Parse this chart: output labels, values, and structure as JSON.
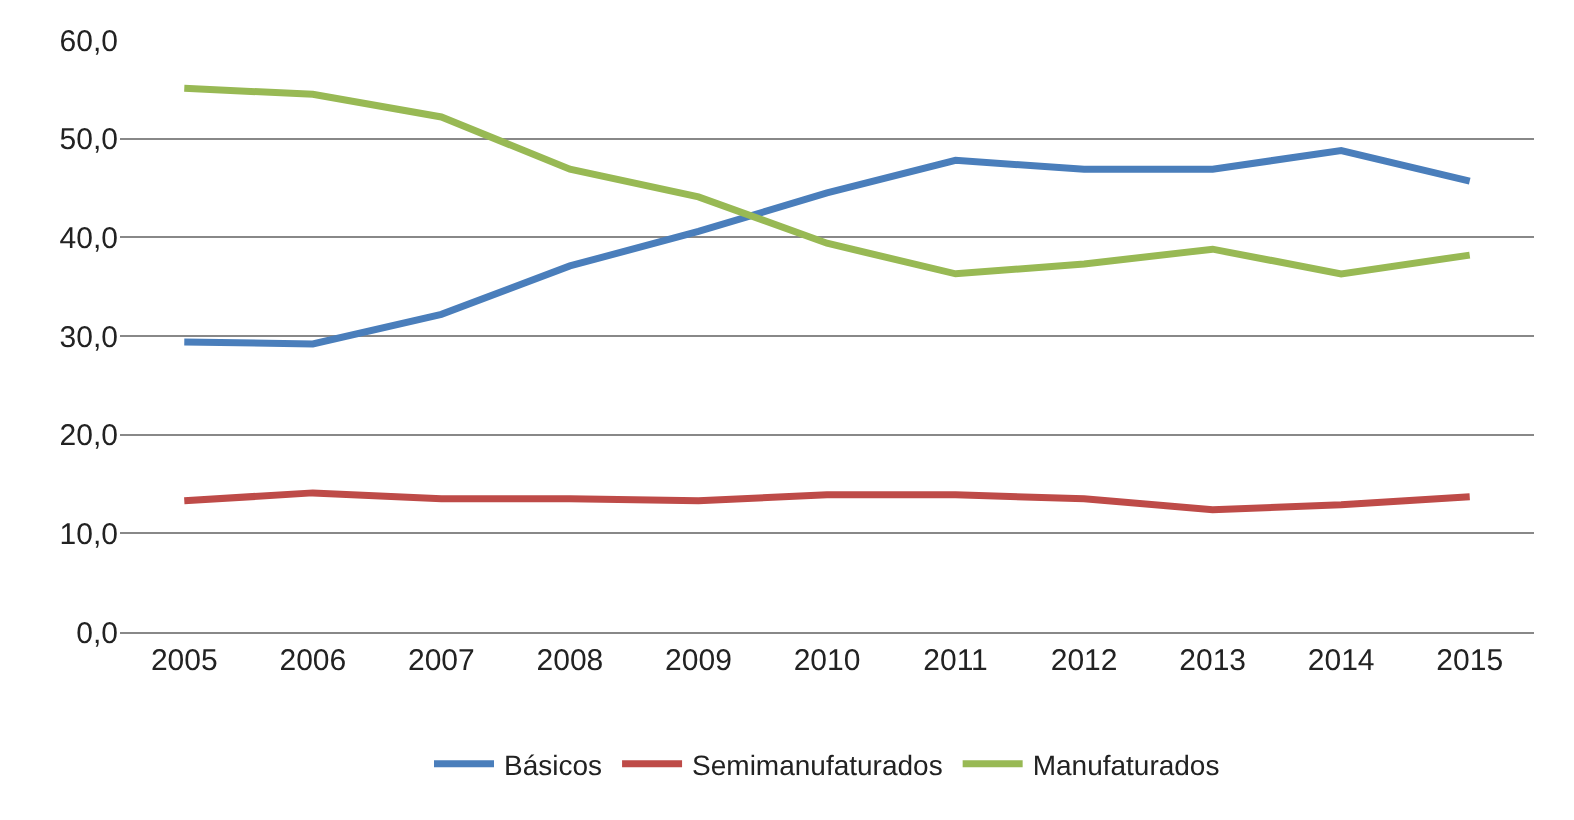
{
  "chart_data": {
    "type": "line",
    "categories": [
      "2005",
      "2006",
      "2007",
      "2008",
      "2009",
      "2010",
      "2011",
      "2012",
      "2013",
      "2014",
      "2015"
    ],
    "series": [
      {
        "name": "Básicos",
        "color": "#4a7ebb",
        "values": [
          29.4,
          29.2,
          32.2,
          37.1,
          40.6,
          44.5,
          47.8,
          46.9,
          46.9,
          48.8,
          45.7
        ]
      },
      {
        "name": "Semimanufaturados",
        "color": "#be4b48",
        "values": [
          13.3,
          14.1,
          13.5,
          13.5,
          13.3,
          13.9,
          13.9,
          13.5,
          12.4,
          12.9,
          13.7
        ]
      },
      {
        "name": "Manufaturados",
        "color": "#98b954",
        "values": [
          55.1,
          54.5,
          52.2,
          46.9,
          44.1,
          39.4,
          36.3,
          37.3,
          38.8,
          36.3,
          38.2
        ]
      }
    ],
    "ylim": [
      0,
      60
    ],
    "yticks": [
      {
        "value": 0,
        "label": "0,0"
      },
      {
        "value": 10,
        "label": "10,0"
      },
      {
        "value": 20,
        "label": "20,0"
      },
      {
        "value": 30,
        "label": "30,0"
      },
      {
        "value": 40,
        "label": "40,0"
      },
      {
        "value": 50,
        "label": "50,0"
      },
      {
        "value": 60,
        "label": "60,0"
      }
    ],
    "grid": "y",
    "legend": "bottom",
    "marker": "none",
    "line_style": "solid"
  }
}
